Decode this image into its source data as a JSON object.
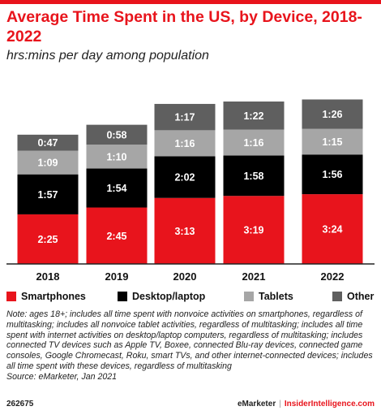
{
  "title": "Average Time Spent in the US, by Device, 2018-2022",
  "subtitle": "hrs:mins per day among population",
  "chart_data": {
    "type": "bar",
    "stacked": true,
    "categories": [
      "2018",
      "2019",
      "2020",
      "2021",
      "2022"
    ],
    "series": [
      {
        "name": "Smartphones",
        "color": "#e8141c",
        "labelColor": "#ffffff",
        "values": [
          145,
          165,
          193,
          199,
          204
        ],
        "labels": [
          "2:25",
          "2:45",
          "3:13",
          "3:19",
          "3:24"
        ]
      },
      {
        "name": "Desktop/laptop",
        "color": "#000000",
        "labelColor": "#ffffff",
        "values": [
          117,
          114,
          122,
          118,
          116
        ],
        "labels": [
          "1:57",
          "1:54",
          "2:02",
          "1:58",
          "1:56"
        ]
      },
      {
        "name": "Tablets",
        "color": "#a6a6a6",
        "labelColor": "#ffffff",
        "values": [
          69,
          70,
          76,
          76,
          75
        ],
        "labels": [
          "1:09",
          "1:10",
          "1:16",
          "1:16",
          "1:15"
        ]
      },
      {
        "name": "Other",
        "color": "#5f5f5f",
        "labelColor": "#ffffff",
        "values": [
          47,
          58,
          77,
          82,
          86
        ],
        "labels": [
          "0:47",
          "0:58",
          "1:17",
          "1:22",
          "1:26"
        ]
      }
    ],
    "unit": "minutes per day",
    "ylim": [
      0,
      570
    ],
    "grid": false,
    "legend_position": "bottom"
  },
  "note": "Note: ages 18+; includes all time spent with nonvoice activities on smartphones, regardless of multitasking; includes all nonvoice tablet activities, regardless of multitasking; includes all time spent with internet activities on desktop/laptop computers, regardless of multitasking; includes connected TV devices such as Apple TV, Boxee, connected Blu-ray devices, connected game consoles, Google Chromecast, Roku, smart TVs, and other internet-connected devices; includes all time spent with these devices, regardless of multitasking",
  "source": "Source: eMarketer, Jan 2021",
  "footer": {
    "id": "262675",
    "brand": "eMarketer",
    "separator": "|",
    "site": "InsiderIntelligence.com"
  }
}
